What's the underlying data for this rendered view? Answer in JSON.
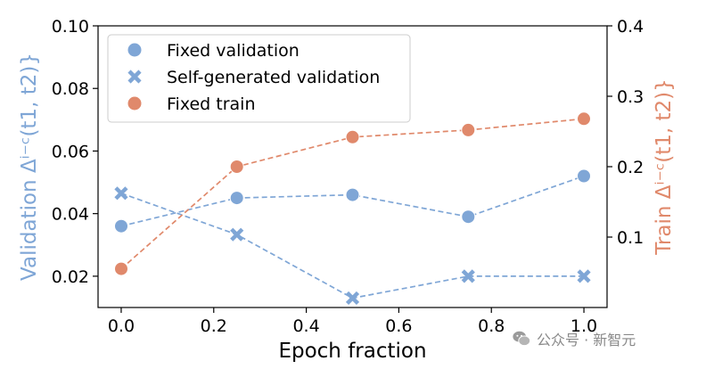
{
  "chart_data": {
    "type": "line",
    "xlabel": "Epoch fraction",
    "ylabel": "Validation Δⁱ⁻ᶜ(t1, t2)}",
    "ylabel_right": "Train Δⁱ⁻ᶜ(t1, t2)}",
    "x": [
      0.0,
      0.25,
      0.5,
      0.75,
      1.0
    ],
    "xlim": [
      -0.05,
      1.05
    ],
    "ylim": [
      0.01,
      0.1
    ],
    "ylim_right": [
      0.0,
      0.4
    ],
    "x_ticks": [
      "0.0",
      "0.2",
      "0.4",
      "0.6",
      "0.8",
      "1.0"
    ],
    "y_ticks": [
      "0.02",
      "0.04",
      "0.06",
      "0.08",
      "0.10"
    ],
    "y_ticks_right": [
      "0.1",
      "0.2",
      "0.3",
      "0.4"
    ],
    "grid": false,
    "legend_position": "top-left",
    "series": [
      {
        "name": "Fixed validation",
        "axis": "left",
        "marker": "circle",
        "color": "#7fa6d6",
        "values": [
          0.036,
          0.045,
          0.046,
          0.039,
          0.052
        ]
      },
      {
        "name": "Self-generated validation",
        "axis": "left",
        "marker": "x",
        "color": "#7fa6d6",
        "values": [
          0.0465,
          0.0333,
          0.013,
          0.02,
          0.02
        ]
      },
      {
        "name": "Fixed train",
        "axis": "right",
        "marker": "circle",
        "color": "#e0896b",
        "values": [
          0.055,
          0.2,
          0.242,
          0.252,
          0.268
        ]
      }
    ]
  },
  "colors": {
    "left_axis_label": "#7fa6d6",
    "right_axis_label": "#e0896b"
  },
  "watermark": {
    "text": "公众号 · 新智元",
    "icon": "wechat-icon"
  }
}
